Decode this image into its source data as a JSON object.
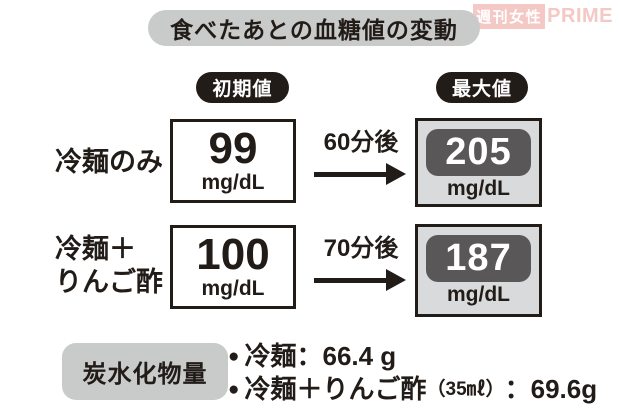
{
  "brand": {
    "weekly": "週刊女性",
    "prime": "PRIME"
  },
  "title": "食べたあとの血糖値の変動",
  "columns": {
    "initial": "初期値",
    "max": "最大値"
  },
  "rows": [
    {
      "label_lines": [
        "冷麺のみ"
      ],
      "initial_value": "99",
      "initial_unit": "mg/dL",
      "elapsed": "60分後",
      "max_value": "205",
      "max_unit": "mg/dL"
    },
    {
      "label_lines": [
        "冷麺＋",
        "りんご酢"
      ],
      "initial_value": "100",
      "initial_unit": "mg/dL",
      "elapsed": "70分後",
      "max_value": "187",
      "max_unit": "mg/dL"
    }
  ],
  "footer": {
    "heading": "炭水化物量",
    "bullet": "●",
    "items": [
      {
        "text": "冷麺：66.4 g",
        "paren": "",
        "rest": ""
      },
      {
        "text": "冷麺＋りんご酢",
        "paren": "（35㎖）",
        "rest": "：69.6g"
      }
    ]
  },
  "colors": {
    "ink": "#221c19",
    "pill_gray": "#c9caca",
    "box_gray_bg": "#d9dadb",
    "badge_gray": "#595757",
    "brand_pink": "#f4c8c5"
  },
  "chart_data": {
    "type": "table",
    "title": "食べたあとの血糖値の変動",
    "columns": [
      "初期値",
      "最大値"
    ],
    "unit": "mg/dL",
    "rows": [
      {
        "label": "冷麺のみ",
        "initial": 99,
        "time_to_max": "60分後",
        "max": 205
      },
      {
        "label": "冷麺＋りんご酢",
        "initial": 100,
        "time_to_max": "70分後",
        "max": 187
      }
    ],
    "notes": {
      "heading": "炭水化物量",
      "items": [
        "冷麺：66.4 g",
        "冷麺＋りんご酢（35㎖）：69.6g"
      ]
    }
  }
}
